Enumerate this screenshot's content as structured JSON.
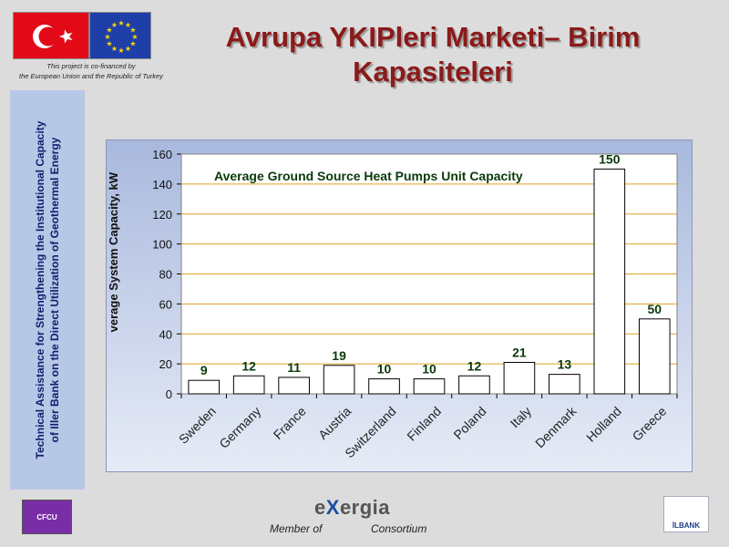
{
  "header": {
    "title_line1": "Avrupa YKIPleri Marketi– Birim",
    "title_line2": "Kapasiteleri",
    "cofinance_line1": "This project is co-financed by",
    "cofinance_line2": "the European Union and the Republic of Turkey",
    "logos": [
      "turkey-flag-icon",
      "eu-flag-icon"
    ]
  },
  "sidebar": {
    "text": "Technical Assistance for Strengthening the Institutional Capacity\nof Iller Bank on the Direct Utilization of Geothermal Energy"
  },
  "chart_data": {
    "type": "bar",
    "title": "Average Ground Source Heat Pumps Unit Capacity",
    "ylabel": "verage System Capacity, kW",
    "xlabel": "",
    "categories": [
      "Sweden",
      "Germany",
      "France",
      "Austria",
      "Switzerland",
      "Finland",
      "Poland",
      "Italy",
      "Denmark",
      "Holland",
      "Greece"
    ],
    "values": [
      9,
      12,
      11,
      19,
      10,
      10,
      12,
      21,
      13,
      150,
      50
    ],
    "data_labels": [
      "9",
      "12",
      "11",
      "19",
      "10",
      "10",
      "12",
      "21",
      "13",
      "150",
      "50"
    ],
    "ylim": [
      0,
      160
    ],
    "yticks": [
      "0",
      "20",
      "40",
      "60",
      "80",
      "100",
      "120",
      "140",
      "160"
    ],
    "grid": true,
    "colors": {
      "bar_fill": "#ffffff",
      "bar_stroke": "#000000",
      "grid": "#e0a020",
      "label": "#0a3a0a",
      "plot_bg": "#ffffff"
    }
  },
  "footer": {
    "cfcu_label": "CFCU",
    "exergia_prefix": "e",
    "exergia_x": "X",
    "exergia_suffix": "ergia",
    "member_of": "Member of",
    "consortium": "Consortium",
    "ilbank_label": "İLBANK"
  }
}
